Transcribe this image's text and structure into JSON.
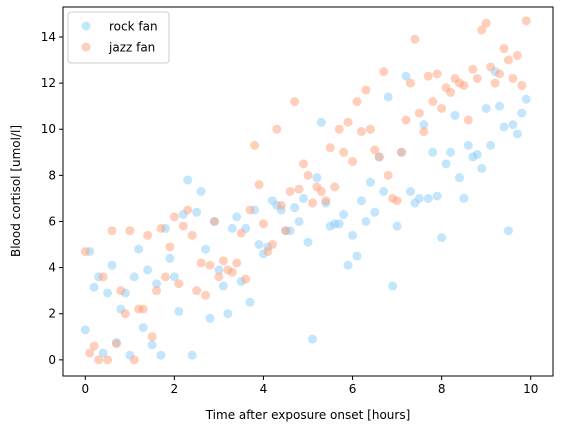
{
  "chart_data": {
    "type": "scatter",
    "xlabel": "Time after exposure onset [hours]",
    "ylabel": "Blood cortisol [umol/l]",
    "xlim": [
      -0.5,
      10.5
    ],
    "ylim": [
      -0.7,
      15.3
    ],
    "xticks": [
      0,
      2,
      4,
      6,
      8,
      10
    ],
    "yticks": [
      0,
      2,
      4,
      6,
      8,
      10,
      12,
      14
    ],
    "grid": false,
    "legend_position": "upper left",
    "series": [
      {
        "name": "rock fan",
        "color": "#87cefa",
        "points": [
          [
            0.0,
            1.3
          ],
          [
            0.1,
            4.7
          ],
          [
            0.2,
            3.15
          ],
          [
            0.3,
            3.6
          ],
          [
            0.4,
            0.3
          ],
          [
            0.5,
            2.9
          ],
          [
            0.6,
            4.1
          ],
          [
            0.7,
            0.75
          ],
          [
            0.8,
            2.2
          ],
          [
            0.9,
            2.9
          ],
          [
            1.0,
            0.2
          ],
          [
            1.1,
            3.6
          ],
          [
            1.2,
            4.8
          ],
          [
            1.3,
            1.4
          ],
          [
            1.4,
            3.9
          ],
          [
            1.5,
            0.65
          ],
          [
            1.6,
            3.3
          ],
          [
            1.7,
            0.2
          ],
          [
            1.8,
            5.7
          ],
          [
            1.9,
            4.4
          ],
          [
            2.0,
            3.6
          ],
          [
            2.1,
            2.1
          ],
          [
            2.2,
            6.3
          ],
          [
            2.3,
            7.8
          ],
          [
            2.4,
            0.2
          ],
          [
            2.5,
            6.4
          ],
          [
            2.6,
            7.3
          ],
          [
            2.7,
            4.8
          ],
          [
            2.8,
            1.8
          ],
          [
            2.9,
            6.0
          ],
          [
            3.0,
            3.9
          ],
          [
            3.1,
            3.2
          ],
          [
            3.2,
            2.0
          ],
          [
            3.3,
            5.7
          ],
          [
            3.4,
            6.2
          ],
          [
            3.5,
            3.4
          ],
          [
            3.6,
            5.7
          ],
          [
            3.7,
            2.5
          ],
          [
            3.8,
            6.5
          ],
          [
            3.9,
            5.0
          ],
          [
            4.0,
            4.6
          ],
          [
            4.1,
            4.9
          ],
          [
            4.2,
            6.9
          ],
          [
            4.3,
            6.7
          ],
          [
            4.4,
            6.5
          ],
          [
            4.5,
            5.6
          ],
          [
            4.6,
            5.6
          ],
          [
            4.7,
            6.6
          ],
          [
            4.8,
            6.0
          ],
          [
            4.9,
            7.0
          ],
          [
            5.0,
            5.1
          ],
          [
            5.1,
            0.9
          ],
          [
            5.2,
            7.9
          ],
          [
            5.3,
            10.3
          ],
          [
            5.4,
            6.8
          ],
          [
            5.5,
            5.8
          ],
          [
            5.6,
            5.9
          ],
          [
            5.7,
            5.9
          ],
          [
            5.8,
            6.3
          ],
          [
            5.9,
            4.1
          ],
          [
            6.0,
            5.4
          ],
          [
            6.1,
            4.5
          ],
          [
            6.2,
            6.9
          ],
          [
            6.3,
            6.0
          ],
          [
            6.4,
            7.7
          ],
          [
            6.5,
            6.4
          ],
          [
            6.6,
            8.8
          ],
          [
            6.7,
            7.3
          ],
          [
            6.8,
            11.4
          ],
          [
            6.9,
            3.2
          ],
          [
            7.0,
            5.8
          ],
          [
            7.1,
            9.0
          ],
          [
            7.2,
            12.3
          ],
          [
            7.3,
            7.3
          ],
          [
            7.4,
            6.8
          ],
          [
            7.5,
            7.0
          ],
          [
            7.6,
            10.2
          ],
          [
            7.7,
            7.0
          ],
          [
            7.8,
            9.0
          ],
          [
            7.9,
            7.1
          ],
          [
            8.0,
            5.3
          ],
          [
            8.1,
            8.5
          ],
          [
            8.2,
            9.0
          ],
          [
            8.3,
            10.6
          ],
          [
            8.4,
            7.9
          ],
          [
            8.5,
            7.0
          ],
          [
            8.6,
            9.3
          ],
          [
            8.7,
            8.8
          ],
          [
            8.8,
            8.9
          ],
          [
            8.9,
            8.3
          ],
          [
            9.0,
            10.9
          ],
          [
            9.1,
            9.3
          ],
          [
            9.2,
            12.5
          ],
          [
            9.3,
            11.0
          ],
          [
            9.4,
            10.1
          ],
          [
            9.5,
            5.6
          ],
          [
            9.6,
            10.2
          ],
          [
            9.7,
            9.8
          ],
          [
            9.8,
            10.7
          ],
          [
            9.9,
            11.3
          ]
        ]
      },
      {
        "name": "jazz fan",
        "color": "#ffa07a",
        "points": [
          [
            0.0,
            4.7
          ],
          [
            0.1,
            0.3
          ],
          [
            0.2,
            0.6
          ],
          [
            0.3,
            0.0
          ],
          [
            0.4,
            3.6
          ],
          [
            0.5,
            0.0
          ],
          [
            0.6,
            5.6
          ],
          [
            0.7,
            0.7
          ],
          [
            0.8,
            3.0
          ],
          [
            0.9,
            2.0
          ],
          [
            1.0,
            5.6
          ],
          [
            1.1,
            0.0
          ],
          [
            1.2,
            2.2
          ],
          [
            1.3,
            2.2
          ],
          [
            1.4,
            5.4
          ],
          [
            1.5,
            1.0
          ],
          [
            1.6,
            3.0
          ],
          [
            1.7,
            5.7
          ],
          [
            1.8,
            3.6
          ],
          [
            1.9,
            4.9
          ],
          [
            2.0,
            6.2
          ],
          [
            2.1,
            3.3
          ],
          [
            2.2,
            5.8
          ],
          [
            2.3,
            6.5
          ],
          [
            2.4,
            5.4
          ],
          [
            2.5,
            3.0
          ],
          [
            2.6,
            4.2
          ],
          [
            2.7,
            2.8
          ],
          [
            2.8,
            4.1
          ],
          [
            2.9,
            6.0
          ],
          [
            3.0,
            3.6
          ],
          [
            3.1,
            4.3
          ],
          [
            3.2,
            3.9
          ],
          [
            3.3,
            3.8
          ],
          [
            3.4,
            4.2
          ],
          [
            3.5,
            5.5
          ],
          [
            3.6,
            3.5
          ],
          [
            3.7,
            6.5
          ],
          [
            3.8,
            9.3
          ],
          [
            3.9,
            7.6
          ],
          [
            4.0,
            5.9
          ],
          [
            4.1,
            4.7
          ],
          [
            4.2,
            5.0
          ],
          [
            4.3,
            10.0
          ],
          [
            4.4,
            6.7
          ],
          [
            4.5,
            5.6
          ],
          [
            4.6,
            7.3
          ],
          [
            4.7,
            11.2
          ],
          [
            4.8,
            7.4
          ],
          [
            4.9,
            8.5
          ],
          [
            5.0,
            8.0
          ],
          [
            5.1,
            6.8
          ],
          [
            5.2,
            7.5
          ],
          [
            5.3,
            7.3
          ],
          [
            5.4,
            6.9
          ],
          [
            5.5,
            9.2
          ],
          [
            5.6,
            7.5
          ],
          [
            5.7,
            10.0
          ],
          [
            5.8,
            9.0
          ],
          [
            5.9,
            10.3
          ],
          [
            6.0,
            8.6
          ],
          [
            6.1,
            11.2
          ],
          [
            6.2,
            9.9
          ],
          [
            6.3,
            11.7
          ],
          [
            6.4,
            10.0
          ],
          [
            6.5,
            9.1
          ],
          [
            6.6,
            8.8
          ],
          [
            6.7,
            12.5
          ],
          [
            6.8,
            8.0
          ],
          [
            6.9,
            7.0
          ],
          [
            7.0,
            6.9
          ],
          [
            7.1,
            9.0
          ],
          [
            7.2,
            10.4
          ],
          [
            7.3,
            12.0
          ],
          [
            7.4,
            13.9
          ],
          [
            7.5,
            10.7
          ],
          [
            7.6,
            9.9
          ],
          [
            7.7,
            12.3
          ],
          [
            7.8,
            11.2
          ],
          [
            7.9,
            12.4
          ],
          [
            8.0,
            10.9
          ],
          [
            8.1,
            11.8
          ],
          [
            8.2,
            11.6
          ],
          [
            8.3,
            12.2
          ],
          [
            8.4,
            12.0
          ],
          [
            8.5,
            11.9
          ],
          [
            8.6,
            10.4
          ],
          [
            8.7,
            12.6
          ],
          [
            8.8,
            12.2
          ],
          [
            8.9,
            14.3
          ],
          [
            9.0,
            14.6
          ],
          [
            9.1,
            12.7
          ],
          [
            9.2,
            12.0
          ],
          [
            9.3,
            12.4
          ],
          [
            9.4,
            13.5
          ],
          [
            9.5,
            13.0
          ],
          [
            9.6,
            12.2
          ],
          [
            9.7,
            13.2
          ],
          [
            9.8,
            11.9
          ],
          [
            9.9,
            14.7
          ]
        ]
      }
    ]
  }
}
